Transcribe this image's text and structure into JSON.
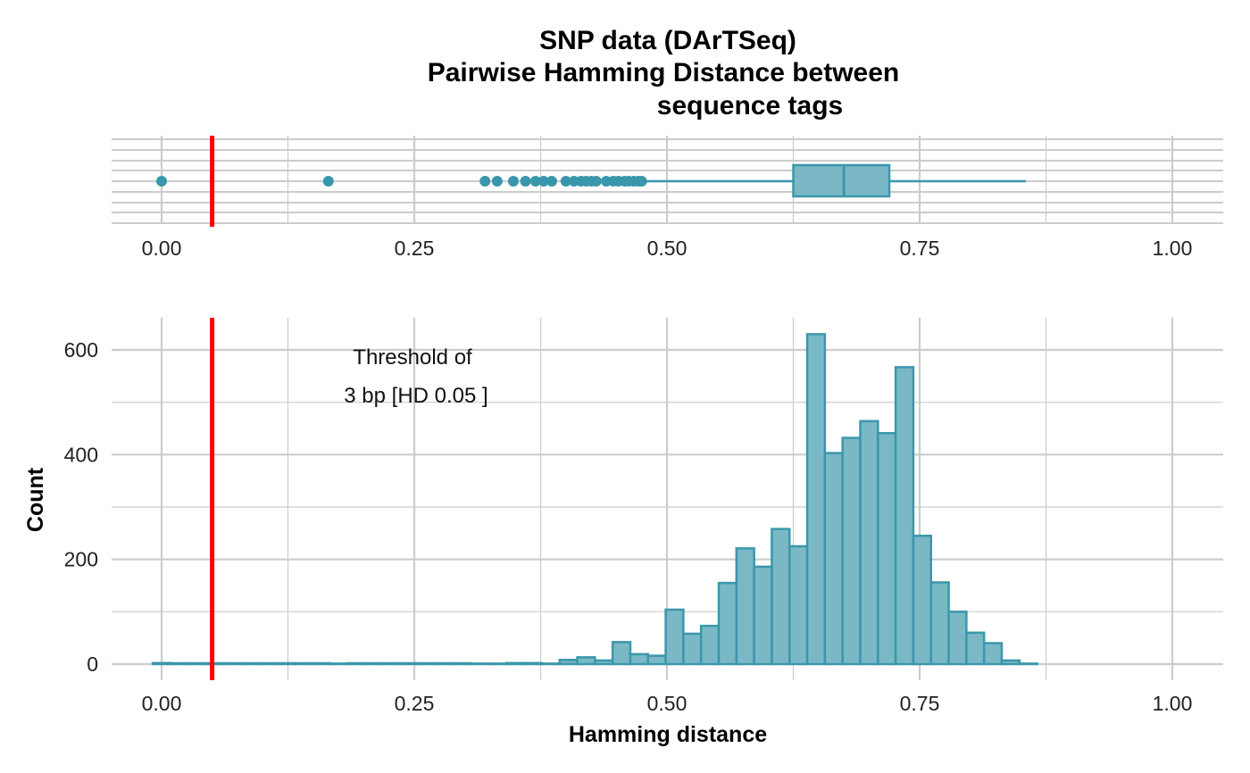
{
  "chart_data": {
    "title_lines": [
      "SNP data (DArTSeq)",
      "Pairwise Hamming Distance between",
      "sequence tags"
    ],
    "threshold": {
      "value": 0.05,
      "color": "#ff0000"
    },
    "annotation_lines": [
      "Threshold of",
      "3 bp [HD 0.05 ]"
    ],
    "fill_color": "#7ab8c6",
    "stroke_color": "#3a97ab",
    "boxplot": {
      "type": "boxplot",
      "xlim": [
        -0.05,
        1.05
      ],
      "x_ticks": [
        "0.00",
        "0.25",
        "0.50",
        "0.75",
        "1.00"
      ],
      "box": {
        "q1": 0.625,
        "median": 0.675,
        "q3": 0.72,
        "whisker_low": 0.48,
        "whisker_high": 0.855
      },
      "outliers": [
        0.0,
        0.165,
        0.32,
        0.332,
        0.348,
        0.36,
        0.37,
        0.378,
        0.386,
        0.4,
        0.408,
        0.415,
        0.42,
        0.425,
        0.43,
        0.44,
        0.447,
        0.452,
        0.458,
        0.462,
        0.467,
        0.472,
        0.475
      ]
    },
    "histogram": {
      "type": "bar",
      "xlabel": "Hamming distance",
      "ylabel": "Count",
      "xlim": [
        -0.05,
        1.05
      ],
      "ylim": [
        -30,
        660
      ],
      "x_ticks": [
        "0.00",
        "0.25",
        "0.50",
        "0.75",
        "1.00"
      ],
      "y_ticks": [
        "0",
        "200",
        "400",
        "600"
      ],
      "bin_width": 0.0175,
      "bins": [
        {
          "x": 0.0,
          "count": 2
        },
        {
          "x": 0.0175,
          "count": 0
        },
        {
          "x": 0.035,
          "count": 0
        },
        {
          "x": 0.0525,
          "count": 0
        },
        {
          "x": 0.07,
          "count": 0
        },
        {
          "x": 0.0875,
          "count": 0
        },
        {
          "x": 0.105,
          "count": 0
        },
        {
          "x": 0.1225,
          "count": 0
        },
        {
          "x": 0.14,
          "count": 0
        },
        {
          "x": 0.1575,
          "count": 0
        },
        {
          "x": 0.175,
          "count": 1
        },
        {
          "x": 0.1925,
          "count": 0
        },
        {
          "x": 0.21,
          "count": 0
        },
        {
          "x": 0.2275,
          "count": 0
        },
        {
          "x": 0.245,
          "count": 0
        },
        {
          "x": 0.2625,
          "count": 0
        },
        {
          "x": 0.28,
          "count": 0
        },
        {
          "x": 0.2975,
          "count": 0
        },
        {
          "x": 0.315,
          "count": 1
        },
        {
          "x": 0.3325,
          "count": 1
        },
        {
          "x": 0.35,
          "count": 2
        },
        {
          "x": 0.3675,
          "count": 2
        },
        {
          "x": 0.385,
          "count": 1
        },
        {
          "x": 0.4025,
          "count": 8
        },
        {
          "x": 0.42,
          "count": 13
        },
        {
          "x": 0.4375,
          "count": 7
        },
        {
          "x": 0.455,
          "count": 42
        },
        {
          "x": 0.4725,
          "count": 19
        },
        {
          "x": 0.49,
          "count": 16
        },
        {
          "x": 0.5075,
          "count": 104
        },
        {
          "x": 0.525,
          "count": 58
        },
        {
          "x": 0.5425,
          "count": 73
        },
        {
          "x": 0.56,
          "count": 155
        },
        {
          "x": 0.5775,
          "count": 221
        },
        {
          "x": 0.595,
          "count": 186
        },
        {
          "x": 0.6125,
          "count": 258
        },
        {
          "x": 0.63,
          "count": 225
        },
        {
          "x": 0.6475,
          "count": 630
        },
        {
          "x": 0.665,
          "count": 403
        },
        {
          "x": 0.6825,
          "count": 432
        },
        {
          "x": 0.7,
          "count": 464
        },
        {
          "x": 0.7175,
          "count": 441
        },
        {
          "x": 0.735,
          "count": 567
        },
        {
          "x": 0.7525,
          "count": 245
        },
        {
          "x": 0.77,
          "count": 156
        },
        {
          "x": 0.7875,
          "count": 100
        },
        {
          "x": 0.805,
          "count": 60
        },
        {
          "x": 0.8225,
          "count": 40
        },
        {
          "x": 0.84,
          "count": 7
        },
        {
          "x": 0.8575,
          "count": 1
        }
      ]
    }
  }
}
